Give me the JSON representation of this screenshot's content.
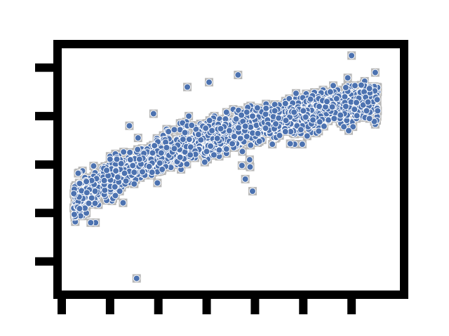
{
  "chart_data": {
    "type": "scatter",
    "title": "",
    "xlabel": "",
    "ylabel": "",
    "xlim": [
      0,
      7
    ],
    "ylim": [
      -0.6,
      4.4
    ],
    "x_ticks": [
      0,
      1,
      2,
      3,
      4,
      5,
      6
    ],
    "y_ticks": [
      0,
      1,
      2,
      3,
      4
    ],
    "grid": false,
    "legend": "none",
    "marker": "circle",
    "color": "#4c72b0",
    "x": [],
    "y": [],
    "description_points": 1800
  }
}
